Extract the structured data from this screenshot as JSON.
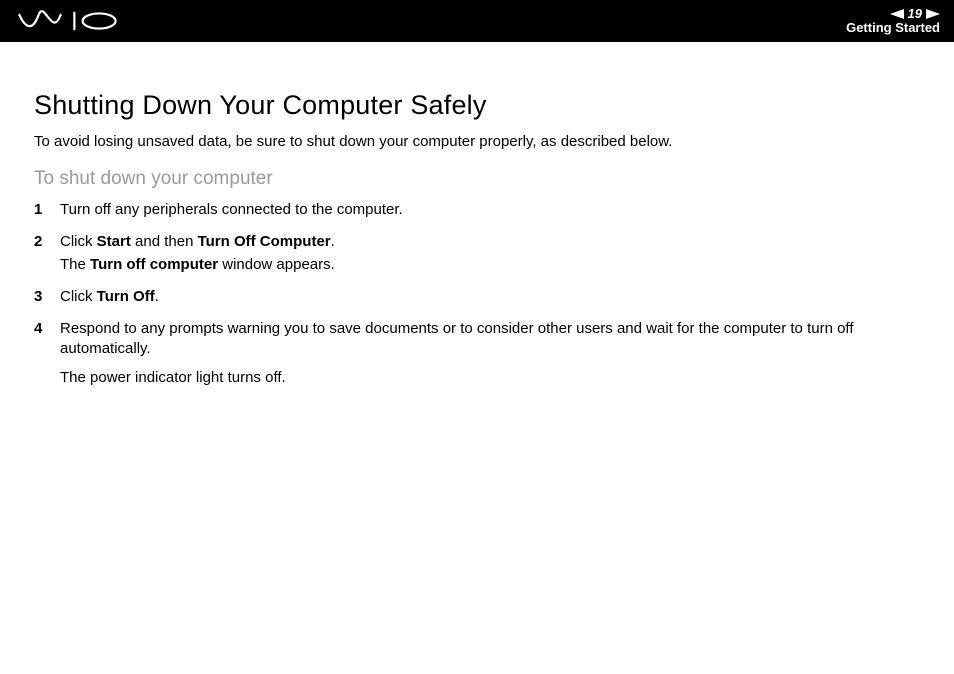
{
  "header": {
    "page_number": "19",
    "section": "Getting Started"
  },
  "content": {
    "title": "Shutting Down Your Computer Safely",
    "intro": "To avoid losing unsaved data, be sure to shut down your computer properly, as described below.",
    "subhead": "To shut down your computer",
    "steps": [
      {
        "num": "1",
        "lines": [
          {
            "segments": [
              {
                "t": "Turn off any peripherals connected to the computer."
              }
            ]
          }
        ]
      },
      {
        "num": "2",
        "lines": [
          {
            "segments": [
              {
                "t": "Click "
              },
              {
                "t": "Start",
                "bold": true
              },
              {
                "t": " and then "
              },
              {
                "t": "Turn Off Computer",
                "bold": true
              },
              {
                "t": "."
              }
            ]
          },
          {
            "segments": [
              {
                "t": "The "
              },
              {
                "t": "Turn off computer",
                "bold": true
              },
              {
                "t": " window appears."
              }
            ]
          }
        ]
      },
      {
        "num": "3",
        "lines": [
          {
            "segments": [
              {
                "t": "Click "
              },
              {
                "t": "Turn Off",
                "bold": true
              },
              {
                "t": "."
              }
            ]
          }
        ]
      },
      {
        "num": "4",
        "lines": [
          {
            "segments": [
              {
                "t": "Respond to any prompts warning you to save documents or to consider other users and wait for the computer to turn off automatically."
              }
            ]
          },
          {
            "segments": [
              {
                "t": "The power indicator light turns off."
              }
            ],
            "gap": true
          }
        ]
      }
    ]
  },
  "colors": {
    "header_bg": "#000000",
    "header_fg": "#ffffff",
    "subhead": "#9a9a9a",
    "body_text": "#000000",
    "page_bg": "#ffffff"
  }
}
